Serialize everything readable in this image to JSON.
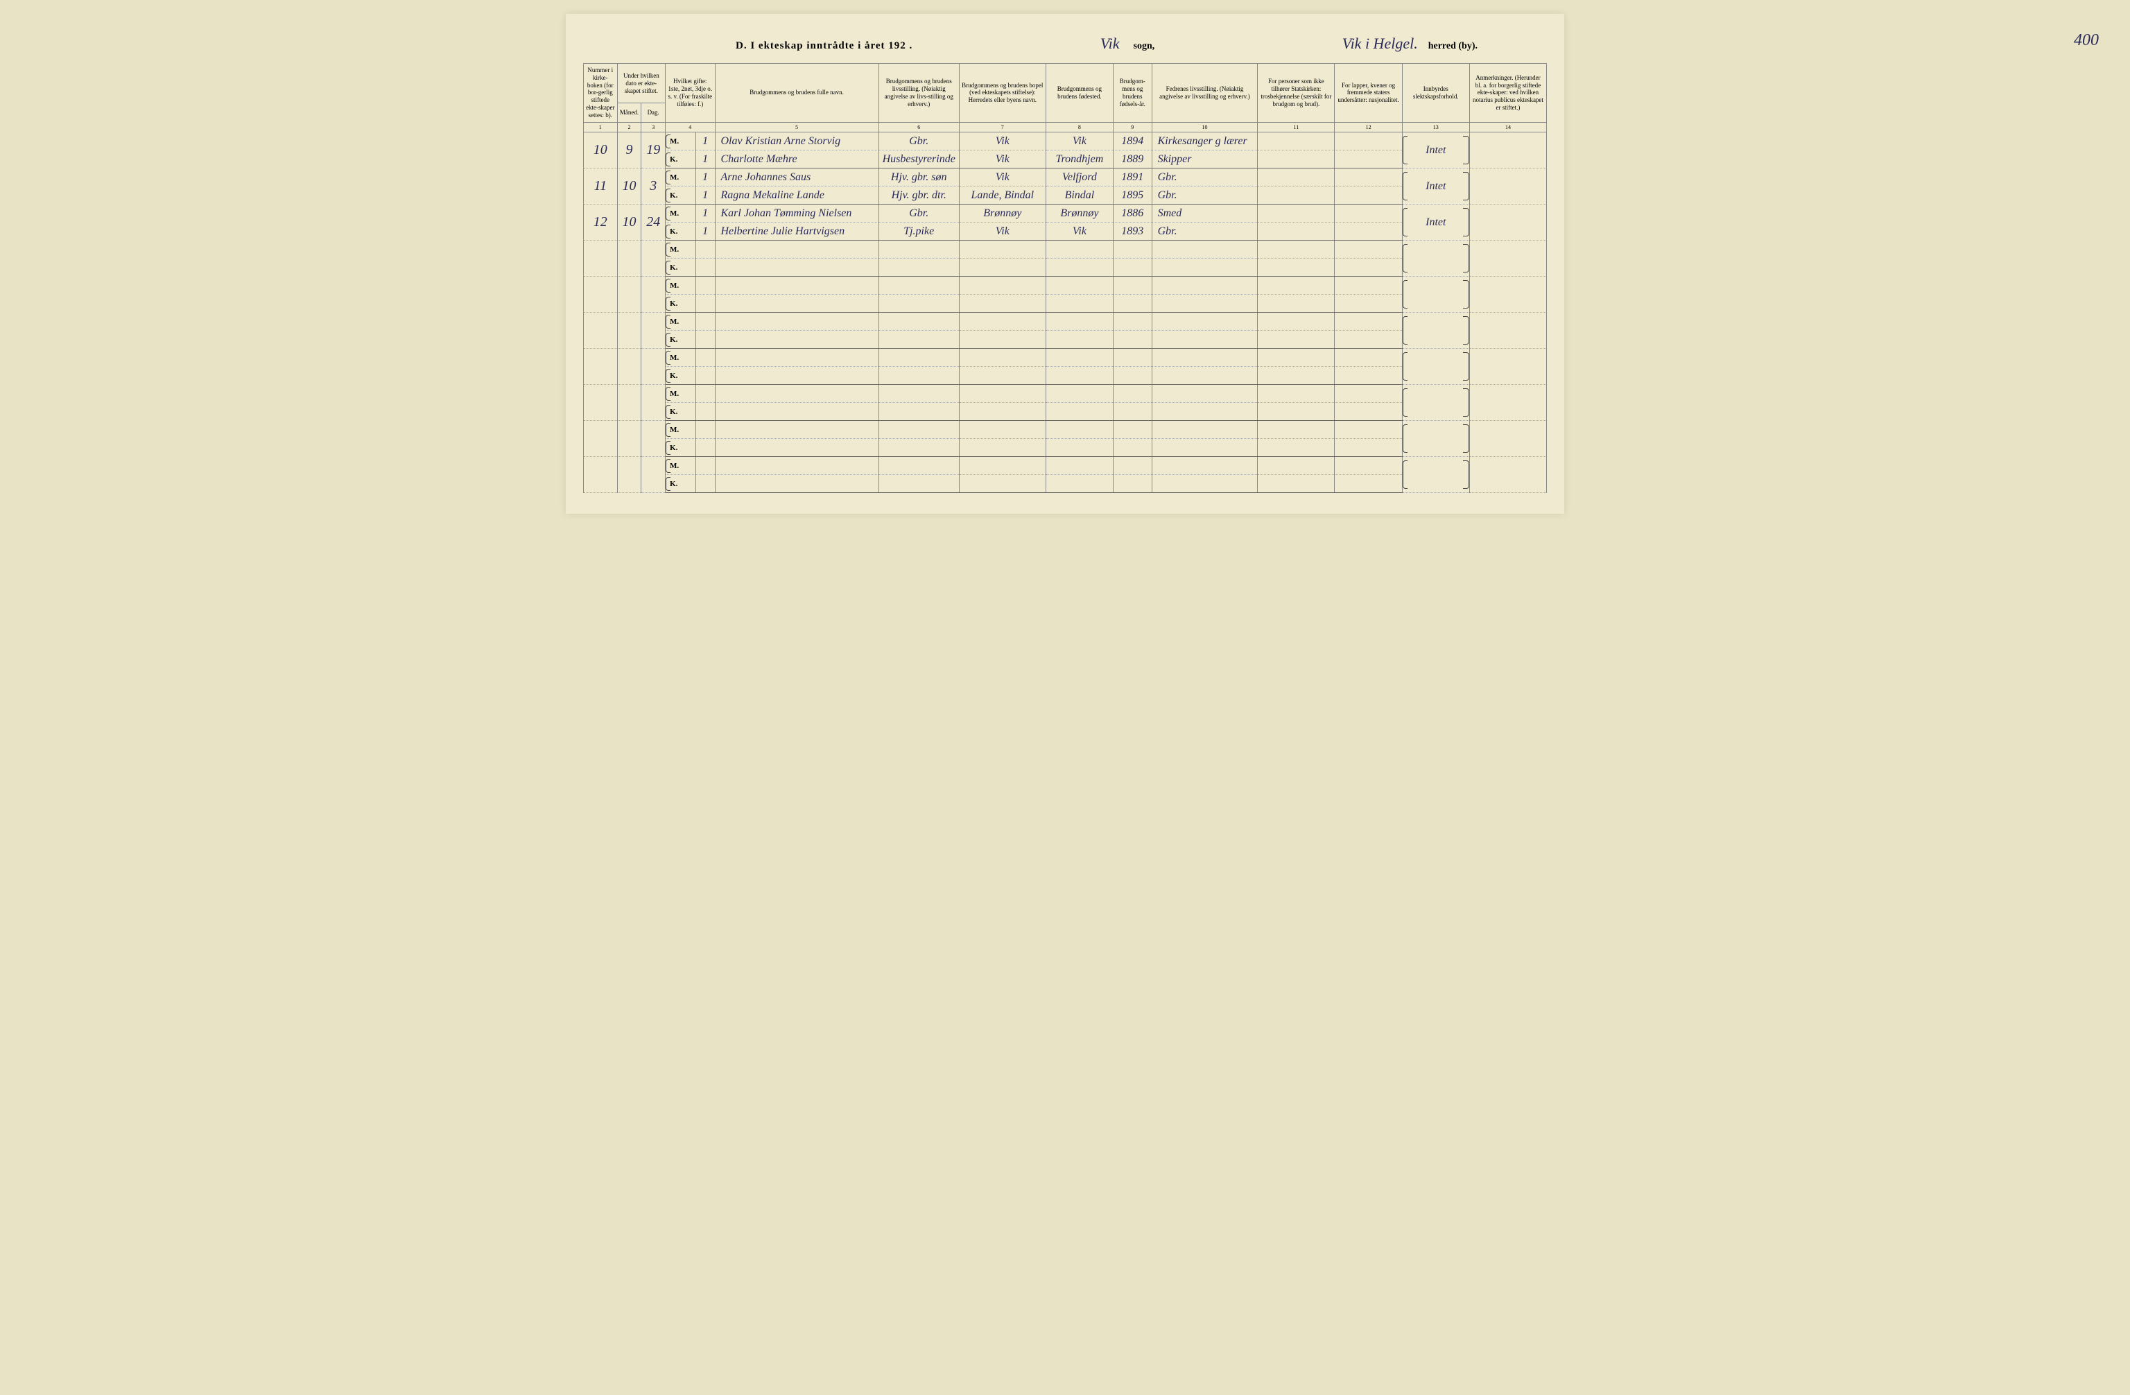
{
  "header": {
    "title_printed": "D.  I ekteskap inntrådte i året 192   .",
    "sogn_handwritten": "Vik",
    "sogn_label": "sogn,",
    "herred_handwritten": "Vik i Helgel.",
    "herred_label": "herred (by).",
    "page_number": "400"
  },
  "columns": {
    "c1": "Nummer i kirke-boken (for bor-gerlig stiftede ekte-skaper settes: b).",
    "c2_group": "Under hvilken dato er ekte-skapet stiftet.",
    "c2a": "Måned.",
    "c2b": "Dag.",
    "c4": "Hvilket gifte: 1ste, 2net, 3dje o. s. v. (For fraskilte tilføies: f.)",
    "c5": "Brudgommens og brudens fulle navn.",
    "c6": "Brudgommens og brudens livsstilling. (Nøiaktig angivelse av livs-stilling og erhverv.)",
    "c7": "Brudgommens og brudens bopel (ved ekteskapets stiftelse): Herredets eller byens navn.",
    "c8": "Brudgommens og brudens fødested.",
    "c9": "Brudgom-mens og brudens fødsels-år.",
    "c10": "Fedrenes livsstilling. (Nøiaktig angivelse av livsstilling og erhverv.)",
    "c11": "For personer som ikke tilhører Statskirken: trosbekjennelse (særskilt for brudgom og brud).",
    "c12": "For lapper, kvener og fremmede staters undersåtter: nasjonalitet.",
    "c13": "Innbyrdes slektskapsforhold.",
    "c14": "Anmerkninger. (Herunder bl. a. for borgerlig stiftede ekte-skaper: ved hvilken notarius publicus ekteskapet er stiftet.)"
  },
  "col_nums": {
    "n1": "1",
    "n2": "2",
    "n3": "3",
    "n4": "4",
    "n5": "5",
    "n6": "6",
    "n7": "7",
    "n8": "8",
    "n9": "9",
    "n10": "10",
    "n11": "11",
    "n12": "12",
    "n13": "13",
    "n14": "14"
  },
  "mk": {
    "m": "M.",
    "k": "K."
  },
  "entries": [
    {
      "num": "10",
      "month": "9",
      "day": "19",
      "m": {
        "gifte": "1",
        "name": "Olav Kristian Arne Storvig",
        "livs": "Gbr.",
        "bopel": "Vik",
        "fodested": "Vik",
        "year": "1894",
        "fedr": "Kirkesanger g lærer"
      },
      "k": {
        "gifte": "1",
        "name": "Charlotte Mæhre",
        "livs": "Husbestyrerinde",
        "bopel": "Vik",
        "fodested": "Trondhjem",
        "year": "1889",
        "fedr": "Skipper"
      },
      "slekt": "Intet"
    },
    {
      "num": "11",
      "month": "10",
      "day": "3",
      "m": {
        "gifte": "1",
        "name": "Arne Johannes Saus",
        "livs": "Hjv. gbr. søn",
        "bopel": "Vik",
        "fodested": "Velfjord",
        "year": "1891",
        "fedr": "Gbr."
      },
      "k": {
        "gifte": "1",
        "name": "Ragna Mekaline Lande",
        "livs": "Hjv. gbr. dtr.",
        "bopel": "Lande, Bindal",
        "fodested": "Bindal",
        "year": "1895",
        "fedr": "Gbr."
      },
      "slekt": "Intet"
    },
    {
      "num": "12",
      "month": "10",
      "day": "24",
      "m": {
        "gifte": "1",
        "name": "Karl Johan Tømming Nielsen",
        "livs": "Gbr.",
        "bopel": "Brønnøy",
        "fodested": "Brønnøy",
        "year": "1886",
        "fedr": "Smed"
      },
      "k": {
        "gifte": "1",
        "name": "Helbertine Julie Hartvigsen",
        "livs": "Tj.pike",
        "bopel": "Vik",
        "fodested": "Vik",
        "year": "1893",
        "fedr": "Gbr."
      },
      "slekt": "Intet"
    }
  ],
  "styling": {
    "background_color": "#f0ebd0",
    "body_bg": "#e8e3c4",
    "ink_color": "#2a2a5a",
    "border_color": "#888",
    "handwriting_font": "Brush Script MT",
    "print_font": "Times New Roman",
    "total_rows": 10,
    "col_widths_pct": [
      3.5,
      2.5,
      2.5,
      2,
      2,
      17,
      8,
      9,
      7,
      4,
      11,
      8,
      7,
      7,
      8
    ]
  }
}
